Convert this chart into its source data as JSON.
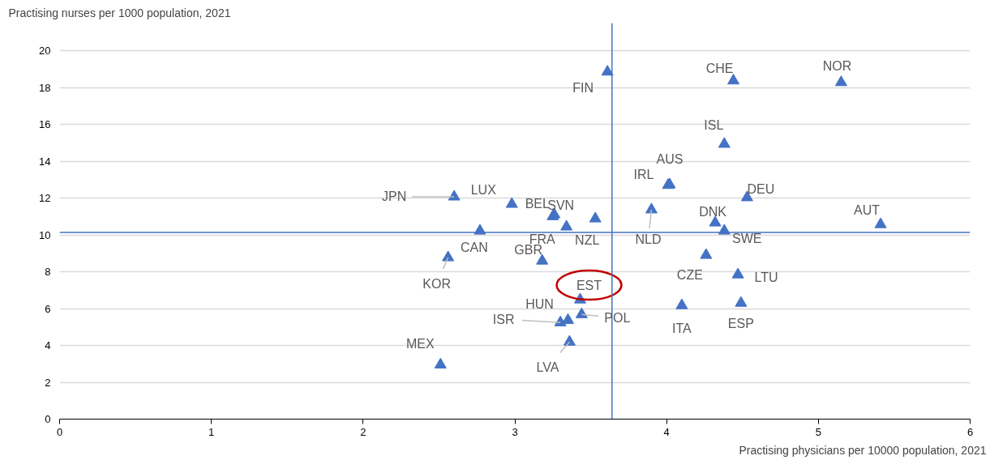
{
  "chart_data": {
    "type": "scatter",
    "xlabel": "Practising physicians per 10000 population, 2021",
    "ylabel": "Practising nurses per 1000 population, 2021",
    "x": [
      3.61,
      4.44,
      5.15,
      4.38,
      4.02,
      4.01,
      3.9,
      4.53,
      4.32,
      4.38,
      5.41,
      4.26,
      4.47,
      4.49,
      4.1,
      2.6,
      2.98,
      3.25,
      3.26,
      3.34,
      3.53,
      2.77,
      2.56,
      3.18,
      3.43,
      3.44,
      3.35,
      3.3,
      3.36,
      2.51
    ],
    "series": [
      {
        "color": "#4472c4",
        "values": [
          18.85,
          18.37,
          18.28,
          14.93,
          12.73,
          12.7,
          11.37,
          12.03,
          10.66,
          10.22,
          10.57,
          8.9,
          7.84,
          6.3,
          6.17,
          12.07,
          11.67,
          11.0,
          11.1,
          10.44,
          10.88,
          10.22,
          8.77,
          8.59,
          6.48,
          5.68,
          5.37,
          5.24,
          4.19,
          2.95
        ]
      }
    ],
    "annotations": [
      {
        "text": "FIN",
        "x": 3.61,
        "y": 18.85
      },
      {
        "text": "CHE",
        "x": 4.44,
        "y": 18.37
      },
      {
        "text": "NOR",
        "x": 5.15,
        "y": 18.28
      },
      {
        "text": "ISL",
        "x": 4.38,
        "y": 14.93
      },
      {
        "text": "AUS",
        "x": 4.02,
        "y": 12.73
      },
      {
        "text": "IRL",
        "x": 4.01,
        "y": 12.7
      },
      {
        "text": "NLD",
        "x": 3.9,
        "y": 11.37
      },
      {
        "text": "DEU",
        "x": 4.53,
        "y": 12.03
      },
      {
        "text": "DNK",
        "x": 4.32,
        "y": 10.66
      },
      {
        "text": "SWE",
        "x": 4.38,
        "y": 10.22
      },
      {
        "text": "AUT",
        "x": 5.41,
        "y": 10.57
      },
      {
        "text": "CZE",
        "x": 4.26,
        "y": 8.9
      },
      {
        "text": "LTU",
        "x": 4.47,
        "y": 7.84
      },
      {
        "text": "ESP",
        "x": 4.49,
        "y": 6.3
      },
      {
        "text": "ITA",
        "x": 4.1,
        "y": 6.17
      },
      {
        "text": "JPN",
        "x": 2.6,
        "y": 12.07
      },
      {
        "text": "LUX",
        "x": 2.98,
        "y": 11.67
      },
      {
        "text": "BEL",
        "x": 3.25,
        "y": 11.0
      },
      {
        "text": "SVN",
        "x": 3.26,
        "y": 11.1
      },
      {
        "text": "FRA",
        "x": 3.34,
        "y": 10.44
      },
      {
        "text": "NZL",
        "x": 3.53,
        "y": 10.88
      },
      {
        "text": "CAN",
        "x": 2.77,
        "y": 10.22
      },
      {
        "text": "KOR",
        "x": 2.56,
        "y": 8.77
      },
      {
        "text": "GBR",
        "x": 3.18,
        "y": 8.59
      },
      {
        "text": "EST",
        "x": 3.43,
        "y": 6.48
      },
      {
        "text": "POL",
        "x": 3.44,
        "y": 5.68
      },
      {
        "text": "HUN",
        "x": 3.35,
        "y": 5.37
      },
      {
        "text": "ISR",
        "x": 3.3,
        "y": 5.24
      },
      {
        "text": "LVA",
        "x": 3.36,
        "y": 4.19
      },
      {
        "text": "MEX",
        "x": 2.51,
        "y": 2.95
      }
    ],
    "ref_lines": [
      {
        "axis": "x",
        "value": 3.64,
        "color": "#4472c4"
      },
      {
        "axis": "y",
        "value": 10.13,
        "color": "#4472c4"
      }
    ],
    "xlim": [
      0,
      6
    ],
    "xticks": [
      0,
      1,
      2,
      3,
      4,
      5,
      6
    ],
    "ylim": [
      0,
      21.5
    ],
    "yticks": [
      0,
      2,
      4,
      6,
      8,
      10,
      12,
      14,
      16,
      18,
      20
    ],
    "grid": "y",
    "marker": "triangle"
  }
}
